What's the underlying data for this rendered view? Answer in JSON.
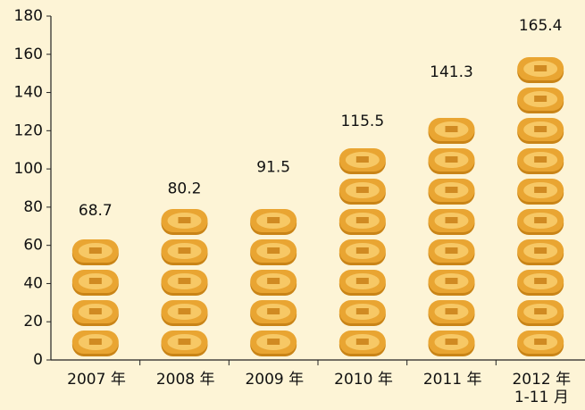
{
  "chart_data": {
    "type": "pictorial-bar",
    "categories": [
      "2007 年",
      "2008 年",
      "2009 年",
      "2010 年",
      "2011 年",
      "2012 年\n1-11 月"
    ],
    "values": [
      68.7,
      80.2,
      91.5,
      115.5,
      141.3,
      165.4
    ],
    "color": "#e9a532",
    "ylim": [
      0,
      180
    ],
    "yticks": [
      0,
      20,
      40,
      60,
      80,
      100,
      120,
      140,
      160,
      180
    ]
  }
}
